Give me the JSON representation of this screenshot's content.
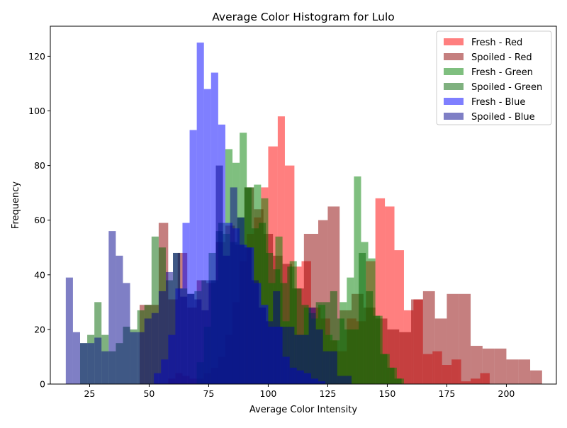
{
  "chart_data": {
    "type": "bar",
    "title": "Average Color Histogram for Lulo",
    "xlabel": "Average Color Intensity",
    "ylabel": "Frequency",
    "xlim": [
      8.5,
      221
    ],
    "ylim": [
      0,
      131
    ],
    "xticks": [
      25,
      50,
      75,
      100,
      125,
      150,
      175,
      200
    ],
    "yticks": [
      0,
      20,
      40,
      60,
      80,
      100,
      120
    ],
    "grid": false,
    "legend_position": "top-right",
    "histogram": true,
    "series": [
      {
        "name": "Fresh - Red",
        "color": "#ff0000",
        "opacity": 0.5,
        "bins": [
          [
            55,
            58,
            0
          ],
          [
            58,
            61,
            2
          ],
          [
            61,
            64,
            4
          ],
          [
            64,
            67,
            3
          ],
          [
            67,
            70,
            2
          ],
          [
            70,
            73,
            2
          ],
          [
            73,
            76,
            4
          ],
          [
            76,
            79,
            6
          ],
          [
            79,
            82,
            10
          ],
          [
            82,
            85,
            18
          ],
          [
            85,
            88,
            30
          ],
          [
            88,
            91,
            45
          ],
          [
            91,
            94,
            55
          ],
          [
            94,
            97,
            61
          ],
          [
            97,
            100,
            72
          ],
          [
            100,
            104,
            87
          ],
          [
            104,
            107,
            98
          ],
          [
            107,
            111,
            80
          ],
          [
            111,
            114,
            43
          ],
          [
            114,
            118,
            45
          ],
          [
            118,
            122,
            28
          ],
          [
            122,
            126,
            24
          ],
          [
            126,
            129,
            16
          ],
          [
            129,
            133,
            12
          ],
          [
            133,
            137,
            24
          ],
          [
            137,
            141,
            23
          ],
          [
            141,
            145,
            45
          ],
          [
            145,
            149,
            68
          ],
          [
            149,
            153,
            65
          ],
          [
            153,
            157,
            49
          ],
          [
            157,
            161,
            27
          ],
          [
            161,
            165,
            31
          ],
          [
            165,
            169,
            11
          ],
          [
            169,
            173,
            12
          ],
          [
            173,
            177,
            7
          ],
          [
            177,
            181,
            9
          ],
          [
            181,
            185,
            1
          ],
          [
            185,
            189,
            2
          ],
          [
            189,
            193,
            4
          ]
        ]
      },
      {
        "name": "Spoiled - Red",
        "color": "#8b0000",
        "opacity": 0.5,
        "bins": [
          [
            46,
            50,
            29
          ],
          [
            50,
            54,
            29
          ],
          [
            54,
            58,
            59
          ],
          [
            58,
            62,
            31
          ],
          [
            62,
            66,
            48
          ],
          [
            66,
            70,
            28
          ],
          [
            70,
            74,
            38
          ],
          [
            74,
            78,
            37
          ],
          [
            78,
            82,
            52
          ],
          [
            82,
            86,
            58
          ],
          [
            86,
            90,
            51
          ],
          [
            90,
            94,
            72
          ],
          [
            94,
            98,
            64
          ],
          [
            98,
            102,
            55
          ],
          [
            102,
            106,
            47
          ],
          [
            106,
            110,
            44
          ],
          [
            110,
            115,
            35
          ],
          [
            115,
            121,
            55
          ],
          [
            121,
            125,
            60
          ],
          [
            125,
            130,
            65
          ],
          [
            130,
            135,
            27
          ],
          [
            135,
            140,
            33
          ],
          [
            140,
            145,
            28
          ],
          [
            145,
            150,
            24
          ],
          [
            150,
            155,
            20
          ],
          [
            155,
            160,
            19
          ],
          [
            160,
            165,
            31
          ],
          [
            165,
            170,
            34
          ],
          [
            170,
            175,
            24
          ],
          [
            175,
            180,
            33
          ],
          [
            180,
            185,
            33
          ],
          [
            185,
            190,
            14
          ],
          [
            190,
            195,
            13
          ],
          [
            195,
            200,
            13
          ],
          [
            200,
            205,
            9
          ],
          [
            205,
            210,
            9
          ],
          [
            210,
            215,
            5
          ]
        ]
      },
      {
        "name": "Fresh - Green",
        "color": "#008000",
        "opacity": 0.5,
        "bins": [
          [
            70,
            73,
            8
          ],
          [
            73,
            76,
            21
          ],
          [
            76,
            79,
            38
          ],
          [
            79,
            82,
            59
          ],
          [
            82,
            85,
            86
          ],
          [
            85,
            88,
            81
          ],
          [
            88,
            91,
            92
          ],
          [
            91,
            94,
            72
          ],
          [
            94,
            97,
            73
          ],
          [
            97,
            100,
            68
          ],
          [
            100,
            103,
            37
          ],
          [
            103,
            106,
            54
          ],
          [
            106,
            109,
            23
          ],
          [
            109,
            112,
            45
          ],
          [
            112,
            115,
            18
          ],
          [
            115,
            118,
            28
          ],
          [
            118,
            121,
            24
          ],
          [
            121,
            124,
            29
          ],
          [
            124,
            127,
            18
          ],
          [
            127,
            130,
            16
          ],
          [
            130,
            133,
            30
          ],
          [
            133,
            136,
            39
          ],
          [
            136,
            139,
            76
          ],
          [
            139,
            142,
            52
          ],
          [
            142,
            145,
            46
          ],
          [
            145,
            148,
            25
          ],
          [
            148,
            151,
            11
          ],
          [
            151,
            154,
            6
          ],
          [
            154,
            157,
            2
          ]
        ]
      },
      {
        "name": "Spoiled - Green",
        "color": "#006400",
        "opacity": 0.5,
        "bins": [
          [
            21,
            24,
            15
          ],
          [
            24,
            27,
            18
          ],
          [
            27,
            30,
            30
          ],
          [
            30,
            33,
            18
          ],
          [
            33,
            36,
            12
          ],
          [
            36,
            39,
            15
          ],
          [
            39,
            42,
            21
          ],
          [
            42,
            45,
            20
          ],
          [
            45,
            48,
            27
          ],
          [
            48,
            51,
            29
          ],
          [
            51,
            54,
            54
          ],
          [
            54,
            57,
            50
          ],
          [
            57,
            60,
            38
          ],
          [
            60,
            63,
            48
          ],
          [
            63,
            66,
            35
          ],
          [
            66,
            69,
            33
          ],
          [
            69,
            72,
            34
          ],
          [
            72,
            75,
            38
          ],
          [
            75,
            78,
            48
          ],
          [
            78,
            81,
            56
          ],
          [
            81,
            84,
            55
          ],
          [
            84,
            87,
            52
          ],
          [
            87,
            90,
            61
          ],
          [
            90,
            93,
            72
          ],
          [
            93,
            96,
            57
          ],
          [
            96,
            99,
            59
          ],
          [
            99,
            102,
            48
          ],
          [
            102,
            105,
            42
          ],
          [
            105,
            108,
            37
          ],
          [
            108,
            111,
            43
          ],
          [
            111,
            114,
            35
          ],
          [
            114,
            117,
            29
          ],
          [
            117,
            120,
            26
          ],
          [
            120,
            123,
            30
          ],
          [
            123,
            126,
            30
          ],
          [
            126,
            129,
            34
          ],
          [
            129,
            132,
            24
          ],
          [
            132,
            135,
            20
          ],
          [
            135,
            138,
            20
          ],
          [
            138,
            141,
            48
          ],
          [
            141,
            144,
            34
          ],
          [
            144,
            147,
            25
          ],
          [
            147,
            150,
            11
          ],
          [
            150,
            153,
            6
          ],
          [
            153,
            156,
            2
          ]
        ]
      },
      {
        "name": "Fresh - Blue",
        "color": "#0000ff",
        "opacity": 0.5,
        "bins": [
          [
            52,
            55,
            4
          ],
          [
            55,
            58,
            9
          ],
          [
            58,
            61,
            18
          ],
          [
            61,
            64,
            35
          ],
          [
            64,
            67,
            59
          ],
          [
            67,
            70,
            93
          ],
          [
            70,
            73,
            125
          ],
          [
            73,
            76,
            108
          ],
          [
            76,
            79,
            114
          ],
          [
            79,
            82,
            95
          ],
          [
            82,
            85,
            59
          ],
          [
            85,
            88,
            57
          ],
          [
            88,
            91,
            51
          ],
          [
            91,
            94,
            50
          ],
          [
            94,
            97,
            37
          ],
          [
            97,
            100,
            29
          ],
          [
            100,
            103,
            21
          ],
          [
            103,
            106,
            21
          ],
          [
            106,
            109,
            10
          ],
          [
            109,
            112,
            6
          ],
          [
            112,
            115,
            5
          ],
          [
            115,
            118,
            4
          ],
          [
            118,
            121,
            2
          ],
          [
            121,
            124,
            1
          ]
        ]
      },
      {
        "name": "Spoiled - Blue",
        "color": "#00008b",
        "opacity": 0.5,
        "bins": [
          [
            15,
            18,
            39
          ],
          [
            18,
            21,
            19
          ],
          [
            21,
            24,
            15
          ],
          [
            24,
            27,
            15
          ],
          [
            27,
            30,
            17
          ],
          [
            30,
            33,
            12
          ],
          [
            33,
            36,
            56
          ],
          [
            36,
            39,
            47
          ],
          [
            39,
            42,
            37
          ],
          [
            42,
            45,
            19
          ],
          [
            45,
            48,
            19
          ],
          [
            48,
            51,
            24
          ],
          [
            51,
            54,
            26
          ],
          [
            54,
            57,
            34
          ],
          [
            57,
            60,
            41
          ],
          [
            60,
            63,
            48
          ],
          [
            63,
            66,
            32
          ],
          [
            66,
            69,
            33
          ],
          [
            69,
            72,
            31
          ],
          [
            72,
            75,
            27
          ],
          [
            75,
            78,
            38
          ],
          [
            78,
            81,
            80
          ],
          [
            81,
            84,
            47
          ],
          [
            84,
            87,
            72
          ],
          [
            87,
            90,
            61
          ],
          [
            90,
            93,
            50
          ],
          [
            93,
            96,
            38
          ],
          [
            96,
            99,
            28
          ],
          [
            99,
            102,
            23
          ],
          [
            102,
            105,
            34
          ],
          [
            105,
            108,
            21
          ],
          [
            108,
            111,
            21
          ],
          [
            111,
            114,
            18
          ],
          [
            114,
            117,
            18
          ],
          [
            117,
            120,
            28
          ],
          [
            120,
            123,
            20
          ],
          [
            123,
            126,
            12
          ],
          [
            126,
            129,
            12
          ],
          [
            129,
            132,
            3
          ],
          [
            132,
            135,
            3
          ]
        ]
      }
    ]
  }
}
